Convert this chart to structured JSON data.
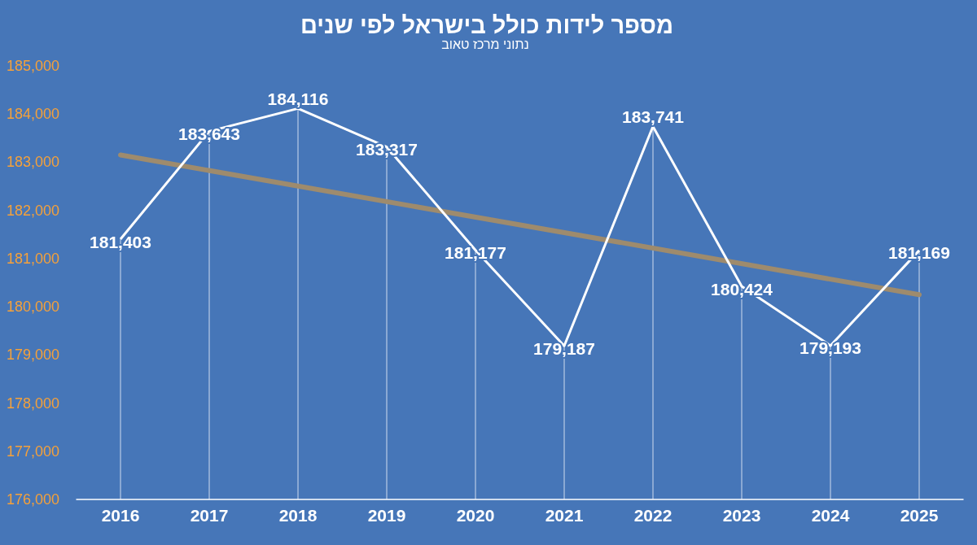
{
  "chart_data": {
    "type": "line",
    "title": "מספר לידות כולל בישראל לפי שנים",
    "subtitle": "נתוני מרכז טאוב",
    "x": [
      2016,
      2017,
      2018,
      2019,
      2020,
      2021,
      2022,
      2023,
      2024,
      2025
    ],
    "series": [
      {
        "color": "#ffffff",
        "values": [
          181403,
          183643,
          184116,
          183317,
          181177,
          179187,
          183741,
          180424,
          179193,
          181169
        ],
        "value_labels": [
          "181,403",
          "183,643",
          "184,116",
          "183,317",
          "181,177",
          "179,187",
          "183,741",
          "180,424",
          "179,193",
          "181,169"
        ]
      },
      {
        "color": "#9e8b6d",
        "x": [
          2016,
          2025
        ],
        "values": [
          183150,
          180250
        ]
      }
    ],
    "xlim": [
      2015.5,
      2025.5
    ],
    "xticks": [
      2016,
      2017,
      2018,
      2019,
      2020,
      2021,
      2022,
      2023,
      2024,
      2025
    ],
    "ylim": [
      176000,
      185000
    ],
    "yticks": [
      {
        "value": 176000,
        "label": "176,000"
      },
      {
        "value": 177000,
        "label": "177,000"
      },
      {
        "value": 178000,
        "label": "178,000"
      },
      {
        "value": 179000,
        "label": "179,000"
      },
      {
        "value": 180000,
        "label": "180,000"
      },
      {
        "value": 181000,
        "label": "181,000"
      },
      {
        "value": 182000,
        "label": "182,000"
      },
      {
        "value": 183000,
        "label": "183,000"
      },
      {
        "value": 184000,
        "label": "184,000"
      },
      {
        "value": 185000,
        "label": "185,000"
      }
    ],
    "grid": "x",
    "marker": "none",
    "line_style": "solid"
  }
}
